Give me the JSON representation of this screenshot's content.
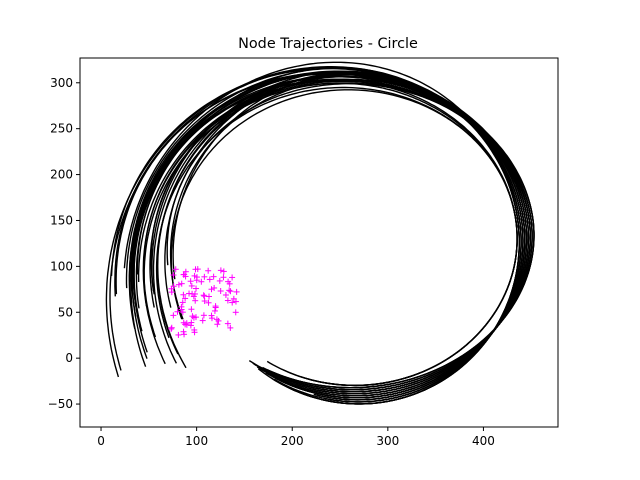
{
  "chart_data": {
    "type": "line",
    "title": "Node Trajectories - Circle",
    "xlabel": "",
    "ylabel": "",
    "xlim": [
      -22,
      478
    ],
    "ylim": [
      -75,
      327
    ],
    "x_ticks": [
      0,
      100,
      200,
      300,
      400
    ],
    "y_ticks": [
      -50,
      0,
      50,
      100,
      150,
      200,
      250,
      300
    ],
    "grid": false,
    "legend": "none",
    "colors": {
      "trajectory": "#000000",
      "start_marker": "#ff00ff"
    },
    "trajectory_shape": {
      "center": [
        268,
        128
      ],
      "radius_x": 180,
      "radius_y": 175,
      "trajectory_count": 34
    },
    "start_region": {
      "x_range": [
        72,
        142
      ],
      "y_range": [
        25,
        98
      ],
      "marker": "+",
      "count": 90
    }
  }
}
